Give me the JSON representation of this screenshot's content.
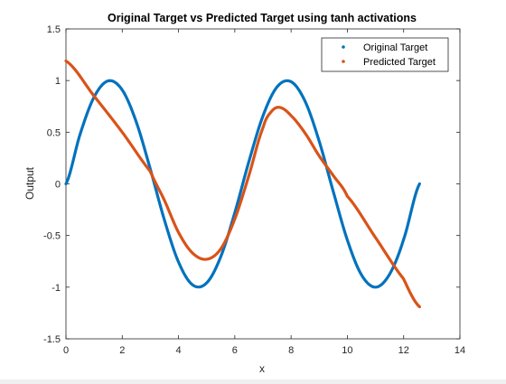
{
  "chart_data": {
    "type": "line",
    "title": "Original Target vs Predicted Target using tanh activations",
    "xlabel": "x",
    "ylabel": "Output",
    "xlim": [
      0,
      14
    ],
    "ylim": [
      -1.5,
      1.5
    ],
    "xticks": [
      0,
      2,
      4,
      6,
      8,
      10,
      12,
      14
    ],
    "yticks": [
      -1.5,
      -1,
      -0.5,
      0,
      0.5,
      1,
      1.5
    ],
    "xtick_labels": [
      "0",
      "2",
      "4",
      "6",
      "8",
      "10",
      "12",
      "14"
    ],
    "ytick_labels": [
      "-1.5",
      "-1",
      "-0.5",
      "0",
      "0.5",
      "1",
      "1.5"
    ],
    "grid": false,
    "legend_position": "top-right",
    "series": [
      {
        "name": "Original Target",
        "color": "#0072BD",
        "x": [
          0,
          0.5,
          1,
          1.5,
          2,
          2.5,
          3,
          3.5,
          4,
          4.5,
          5,
          5.5,
          6,
          6.5,
          7,
          7.5,
          8,
          8.5,
          9,
          9.5,
          10,
          10.5,
          11,
          11.5,
          12,
          12.566
        ],
        "values": [
          0,
          0.479,
          0.841,
          0.997,
          0.909,
          0.598,
          0.141,
          -0.351,
          -0.757,
          -0.978,
          -0.959,
          -0.706,
          -0.279,
          0.215,
          0.657,
          0.938,
          0.989,
          0.798,
          0.412,
          -0.075,
          -0.544,
          -0.88,
          -1.0,
          -0.875,
          -0.537,
          0
        ]
      },
      {
        "name": "Predicted Target",
        "color": "#D95319",
        "x": [
          0,
          1,
          2,
          3,
          3.5,
          4,
          4.5,
          5,
          5.5,
          6,
          6.5,
          7,
          7.3,
          7.6,
          8,
          8.5,
          9,
          9.5,
          10,
          11,
          12,
          12.566
        ],
        "values": [
          1.19,
          0.85,
          0.5,
          0.12,
          -0.16,
          -0.47,
          -0.67,
          -0.73,
          -0.63,
          -0.34,
          0.08,
          0.54,
          0.7,
          0.74,
          0.66,
          0.49,
          0.27,
          0.08,
          -0.12,
          -0.52,
          -0.92,
          -1.19
        ]
      }
    ]
  }
}
